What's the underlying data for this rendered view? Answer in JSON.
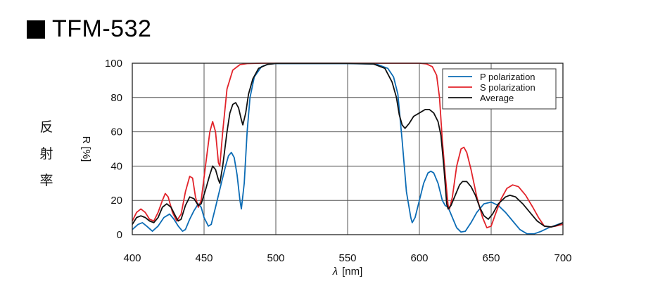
{
  "page": {
    "title": "TFM-532",
    "vertical_label": [
      "反",
      "射",
      "率"
    ]
  },
  "chart_data": {
    "type": "line",
    "title": "TFM-532",
    "xlabel_symbol": "λ",
    "xlabel_unit": "[nm]",
    "ylabel": "R [%]",
    "xlim": [
      400,
      700
    ],
    "ylim": [
      0,
      100
    ],
    "xticks": [
      400,
      450,
      500,
      550,
      600,
      650,
      700
    ],
    "yticks": [
      0,
      20,
      40,
      60,
      80,
      100
    ],
    "grid": true,
    "legend_position": "top-right",
    "series": [
      {
        "name": "P polarization",
        "color": "#0c6cb5",
        "points": [
          [
            400,
            3
          ],
          [
            404,
            6
          ],
          [
            407,
            7
          ],
          [
            410,
            5
          ],
          [
            414,
            2
          ],
          [
            418,
            5
          ],
          [
            422,
            10
          ],
          [
            426,
            12
          ],
          [
            429,
            9
          ],
          [
            432,
            5
          ],
          [
            435,
            2
          ],
          [
            437,
            3
          ],
          [
            440,
            9
          ],
          [
            443,
            14
          ],
          [
            446,
            18
          ],
          [
            448,
            16
          ],
          [
            450,
            10
          ],
          [
            453,
            5
          ],
          [
            455,
            6
          ],
          [
            458,
            16
          ],
          [
            462,
            30
          ],
          [
            465,
            40
          ],
          [
            467,
            46
          ],
          [
            469,
            48
          ],
          [
            471,
            45
          ],
          [
            473,
            35
          ],
          [
            475,
            20
          ],
          [
            476,
            15
          ],
          [
            478,
            30
          ],
          [
            480,
            60
          ],
          [
            482,
            80
          ],
          [
            485,
            92
          ],
          [
            490,
            98
          ],
          [
            495,
            99.5
          ],
          [
            500,
            99.8
          ],
          [
            550,
            99.8
          ],
          [
            570,
            99.5
          ],
          [
            578,
            97
          ],
          [
            582,
            92
          ],
          [
            585,
            82
          ],
          [
            588,
            55
          ],
          [
            591,
            25
          ],
          [
            594,
            10
          ],
          [
            595,
            7
          ],
          [
            597,
            10
          ],
          [
            600,
            20
          ],
          [
            603,
            30
          ],
          [
            606,
            36
          ],
          [
            608,
            37
          ],
          [
            610,
            36
          ],
          [
            613,
            30
          ],
          [
            616,
            20
          ],
          [
            618,
            17
          ],
          [
            620,
            16
          ],
          [
            623,
            10
          ],
          [
            626,
            4
          ],
          [
            629,
            1.5
          ],
          [
            632,
            2
          ],
          [
            636,
            7
          ],
          [
            640,
            13
          ],
          [
            645,
            18
          ],
          [
            650,
            19
          ],
          [
            655,
            17
          ],
          [
            660,
            13
          ],
          [
            665,
            8
          ],
          [
            670,
            3
          ],
          [
            675,
            0.5
          ],
          [
            680,
            0.5
          ],
          [
            685,
            2
          ],
          [
            690,
            4
          ],
          [
            695,
            5.5
          ],
          [
            700,
            7
          ]
        ]
      },
      {
        "name": "S polarization",
        "color": "#e2232a",
        "points": [
          [
            400,
            8
          ],
          [
            403,
            13
          ],
          [
            406,
            15
          ],
          [
            409,
            13
          ],
          [
            412,
            9
          ],
          [
            415,
            8
          ],
          [
            418,
            13
          ],
          [
            421,
            20
          ],
          [
            423,
            24
          ],
          [
            425,
            22
          ],
          [
            428,
            13
          ],
          [
            431,
            8
          ],
          [
            434,
            12
          ],
          [
            437,
            25
          ],
          [
            440,
            34
          ],
          [
            442,
            33
          ],
          [
            444,
            22
          ],
          [
            446,
            16
          ],
          [
            448,
            20
          ],
          [
            451,
            40
          ],
          [
            454,
            60
          ],
          [
            456,
            66
          ],
          [
            458,
            60
          ],
          [
            460,
            42
          ],
          [
            461,
            40
          ],
          [
            463,
            60
          ],
          [
            466,
            85
          ],
          [
            470,
            96
          ],
          [
            475,
            99.2
          ],
          [
            480,
            99.8
          ],
          [
            490,
            100
          ],
          [
            600,
            100
          ],
          [
            605,
            99.6
          ],
          [
            609,
            98
          ],
          [
            612,
            93
          ],
          [
            614,
            80
          ],
          [
            616,
            55
          ],
          [
            618,
            35
          ],
          [
            620,
            17
          ],
          [
            621,
            15
          ],
          [
            623,
            22
          ],
          [
            626,
            40
          ],
          [
            629,
            50
          ],
          [
            631,
            51
          ],
          [
            633,
            48
          ],
          [
            636,
            38
          ],
          [
            640,
            22
          ],
          [
            644,
            10
          ],
          [
            647,
            4
          ],
          [
            650,
            5
          ],
          [
            653,
            12
          ],
          [
            657,
            21
          ],
          [
            661,
            27
          ],
          [
            665,
            29
          ],
          [
            669,
            28
          ],
          [
            674,
            23
          ],
          [
            679,
            16
          ],
          [
            683,
            10
          ],
          [
            687,
            5
          ],
          [
            691,
            4.5
          ],
          [
            695,
            5
          ],
          [
            700,
            6
          ]
        ]
      },
      {
        "name": "Average",
        "color": "#111111",
        "points": [
          [
            400,
            6
          ],
          [
            403,
            10
          ],
          [
            406,
            11
          ],
          [
            409,
            10
          ],
          [
            412,
            8
          ],
          [
            415,
            7
          ],
          [
            418,
            10
          ],
          [
            421,
            16
          ],
          [
            424,
            18
          ],
          [
            427,
            16
          ],
          [
            430,
            11
          ],
          [
            432,
            8
          ],
          [
            434,
            9
          ],
          [
            437,
            17
          ],
          [
            440,
            22
          ],
          [
            443,
            21
          ],
          [
            446,
            17
          ],
          [
            448,
            18
          ],
          [
            451,
            26
          ],
          [
            454,
            35
          ],
          [
            456,
            40
          ],
          [
            458,
            38
          ],
          [
            460,
            32
          ],
          [
            461,
            30
          ],
          [
            463,
            40
          ],
          [
            466,
            60
          ],
          [
            468,
            71
          ],
          [
            470,
            76
          ],
          [
            472,
            77
          ],
          [
            474,
            74
          ],
          [
            476,
            67
          ],
          [
            477,
            64
          ],
          [
            479,
            71
          ],
          [
            481,
            82
          ],
          [
            484,
            91
          ],
          [
            488,
            97
          ],
          [
            494,
            99.3
          ],
          [
            500,
            99.9
          ],
          [
            550,
            99.9
          ],
          [
            568,
            99.6
          ],
          [
            576,
            97
          ],
          [
            581,
            89
          ],
          [
            584,
            80
          ],
          [
            586,
            70
          ],
          [
            588,
            64
          ],
          [
            590,
            62
          ],
          [
            593,
            65
          ],
          [
            596,
            69
          ],
          [
            600,
            71
          ],
          [
            604,
            73
          ],
          [
            607,
            73
          ],
          [
            610,
            71
          ],
          [
            613,
            66
          ],
          [
            615,
            58
          ],
          [
            617,
            40
          ],
          [
            619,
            18
          ],
          [
            620,
            15
          ],
          [
            622,
            17
          ],
          [
            625,
            23
          ],
          [
            628,
            29
          ],
          [
            630,
            31
          ],
          [
            633,
            31
          ],
          [
            636,
            28
          ],
          [
            639,
            23
          ],
          [
            642,
            16
          ],
          [
            645,
            11
          ],
          [
            648,
            9
          ],
          [
            651,
            12
          ],
          [
            655,
            18
          ],
          [
            660,
            22
          ],
          [
            663,
            23
          ],
          [
            667,
            22
          ],
          [
            672,
            18
          ],
          [
            677,
            13
          ],
          [
            682,
            8
          ],
          [
            687,
            5
          ],
          [
            692,
            4.5
          ],
          [
            696,
            5.5
          ],
          [
            700,
            7
          ]
        ]
      }
    ]
  }
}
